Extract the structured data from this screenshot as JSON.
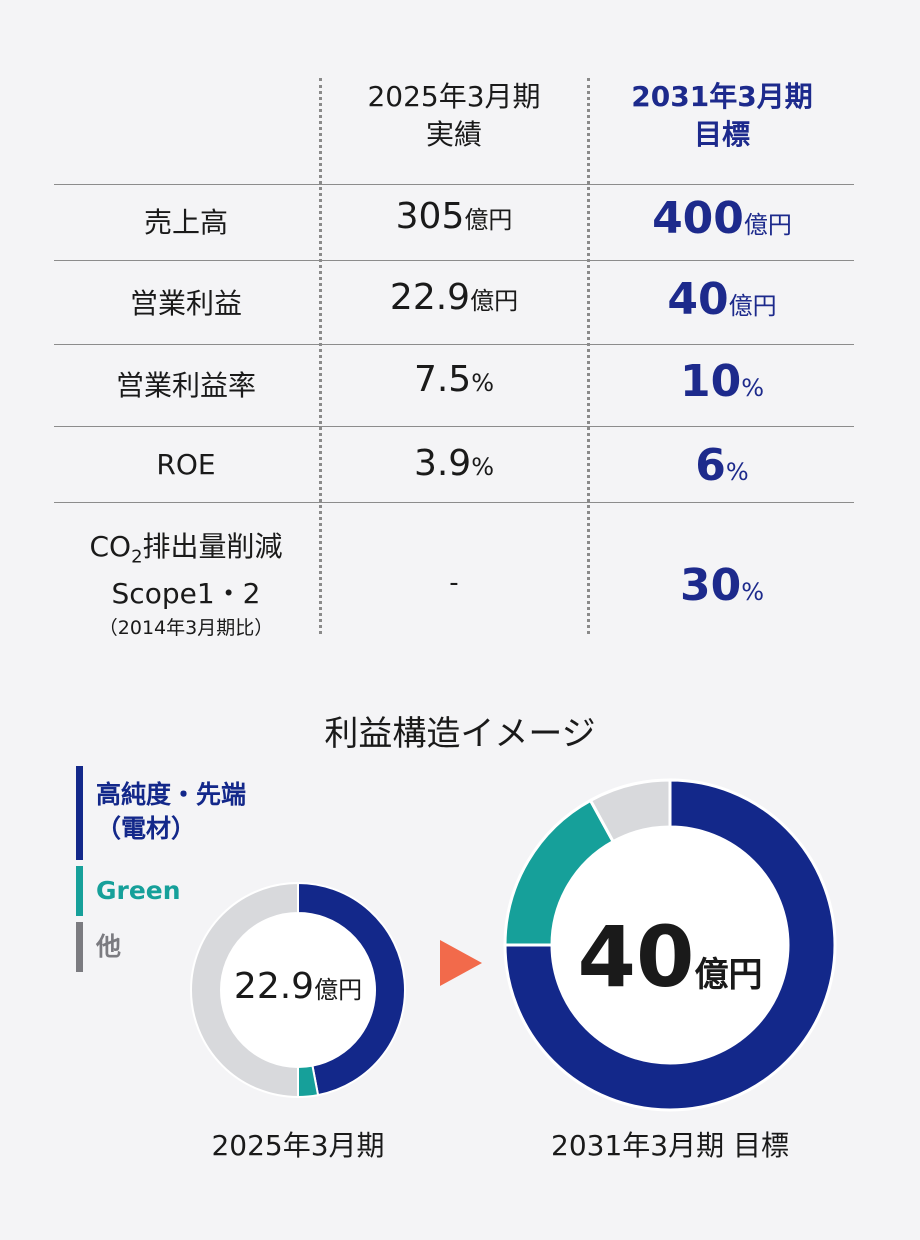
{
  "table": {
    "header_actual": [
      "2025年3月期",
      "実績"
    ],
    "header_target": [
      "2031年3月期",
      "目標"
    ],
    "rows": [
      {
        "label": "売上高",
        "actual": "305",
        "actual_unit": "億円",
        "target": "400",
        "target_unit": "億円"
      },
      {
        "label": "営業利益",
        "actual": "22.9",
        "actual_unit": "億円",
        "target": "40",
        "target_unit": "億円"
      },
      {
        "label": "営業利益率",
        "actual": "7.5",
        "actual_unit": "%",
        "target": "10",
        "target_unit": "%"
      },
      {
        "label": "ROE",
        "actual": "3.9",
        "actual_unit": "%",
        "target": "6",
        "target_unit": "%"
      }
    ],
    "co2_row": {
      "label_line1_pre": "CO",
      "label_line1_sub": "2",
      "label_line1_post": "排出量削減",
      "label_line2": "Scope1・2",
      "label_line3": "（2014年3月期比）",
      "actual": "-",
      "target": "30",
      "target_unit": "%"
    }
  },
  "section_title": "利益構造イメージ",
  "legend": [
    {
      "label_line1": "高純度・先端",
      "label_line2": "（電材）",
      "color": "#13288a"
    },
    {
      "label_line1": "Green",
      "label_line2": "",
      "color": "#16a09a"
    },
    {
      "label_line1": "他",
      "label_line2": "",
      "color": "#7b7b80"
    }
  ],
  "colors": {
    "accent": "#1d2a8c",
    "arrow": "#f26a4b",
    "other_ring": "#d8d9dc"
  },
  "chart_data": [
    {
      "type": "pie",
      "name": "2025年3月期",
      "caption": "2025年3月期",
      "center_value": "22.9",
      "center_unit": "億円",
      "labels": [
        "高純度・先端（電材）",
        "Green",
        "他"
      ],
      "values": [
        47,
        3,
        50
      ],
      "colors": [
        "#13288a",
        "#16a09a",
        "#d8d9dc"
      ]
    },
    {
      "type": "pie",
      "name": "2031年3月期 目標",
      "caption": "2031年3月期 目標",
      "center_value": "40",
      "center_unit": "億円",
      "labels": [
        "高純度・先端（電材）",
        "Green",
        "他"
      ],
      "values": [
        75,
        17,
        8
      ],
      "colors": [
        "#13288a",
        "#16a09a",
        "#d8d9dc"
      ]
    }
  ]
}
